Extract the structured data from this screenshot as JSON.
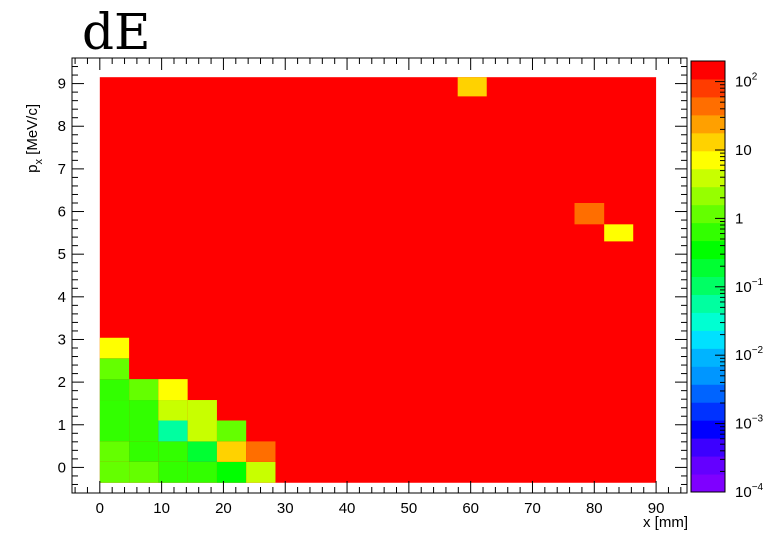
{
  "chart_data": {
    "type": "heatmap",
    "title": "dE",
    "xlabel": "x [mm]",
    "ylabel_main": "p",
    "ylabel_sub": "x",
    "ylabel_unit": " [MeV/c]",
    "x_bin_edges": [
      0,
      4.74,
      9.47,
      14.21,
      18.95,
      23.68,
      28.42,
      90
    ],
    "y_bin_edges": [
      -0.36,
      0.13,
      0.61,
      1.1,
      1.58,
      2.07,
      2.56,
      3.04,
      3.29,
      4.0,
      5.0,
      5.3,
      5.7,
      6.2,
      8.7,
      9.15
    ],
    "xlim": [
      -4.5,
      95
    ],
    "ylim": [
      -0.6,
      9.6
    ],
    "x_ticks": [
      "0",
      "10",
      "20",
      "30",
      "40",
      "50",
      "60",
      "70",
      "80",
      "90"
    ],
    "y_ticks": [
      "0",
      "1",
      "2",
      "3",
      "4",
      "5",
      "6",
      "7",
      "8",
      "9"
    ],
    "z_scale": "log",
    "zlim": [
      0.0001,
      200
    ],
    "z_tick_labels": [
      {
        "base": "10",
        "exp": "2",
        "value": 100
      },
      {
        "base": "10",
        "exp": "",
        "value": 10
      },
      {
        "base": "1",
        "exp": "",
        "value": 1
      },
      {
        "base": "10",
        "exp": "−1",
        "value": 0.1
      },
      {
        "base": "10",
        "exp": "−2",
        "value": 0.01
      },
      {
        "base": "10",
        "exp": "−3",
        "value": 0.001
      },
      {
        "base": "10",
        "exp": "−4",
        "value": 0.0001
      }
    ],
    "cells": [
      {
        "x": [
          0,
          90
        ],
        "y": [
          -0.36,
          9.15
        ],
        "z": 150
      },
      {
        "x": [
          0,
          4.74
        ],
        "y": [
          -0.36,
          0.13
        ],
        "z": 1.5
      },
      {
        "x": [
          4.74,
          9.47
        ],
        "y": [
          -0.36,
          0.13
        ],
        "z": 1.5
      },
      {
        "x": [
          9.47,
          14.21
        ],
        "y": [
          -0.36,
          0.13
        ],
        "z": 0.5
      },
      {
        "x": [
          14.21,
          18.95
        ],
        "y": [
          -0.36,
          0.13
        ],
        "z": 0.5
      },
      {
        "x": [
          18.95,
          23.68
        ],
        "y": [
          -0.36,
          0.13
        ],
        "z": 0.3
      },
      {
        "x": [
          23.68,
          28.42
        ],
        "y": [
          -0.36,
          0.13
        ],
        "z": 5
      },
      {
        "x": [
          0,
          4.74
        ],
        "y": [
          0.13,
          0.61
        ],
        "z": 1.5
      },
      {
        "x": [
          4.74,
          9.47
        ],
        "y": [
          0.13,
          0.61
        ],
        "z": 0.5
      },
      {
        "x": [
          9.47,
          14.21
        ],
        "y": [
          0.13,
          0.61
        ],
        "z": 0.5
      },
      {
        "x": [
          14.21,
          18.95
        ],
        "y": [
          0.13,
          0.61
        ],
        "z": 0.15
      },
      {
        "x": [
          18.95,
          23.68
        ],
        "y": [
          0.13,
          0.61
        ],
        "z": 15
      },
      {
        "x": [
          23.68,
          28.42
        ],
        "y": [
          0.13,
          0.61
        ],
        "z": 35
      },
      {
        "x": [
          0,
          4.74
        ],
        "y": [
          0.61,
          1.1
        ],
        "z": 0.5
      },
      {
        "x": [
          4.74,
          9.47
        ],
        "y": [
          0.61,
          1.1
        ],
        "z": 0.5
      },
      {
        "x": [
          9.47,
          14.21
        ],
        "y": [
          0.61,
          1.1
        ],
        "z": 0.07
      },
      {
        "x": [
          14.21,
          18.95
        ],
        "y": [
          0.61,
          1.1
        ],
        "z": 3
      },
      {
        "x": [
          18.95,
          23.68
        ],
        "y": [
          0.61,
          1.1
        ],
        "z": 1.5
      },
      {
        "x": [
          0,
          4.74
        ],
        "y": [
          1.1,
          1.58
        ],
        "z": 0.5
      },
      {
        "x": [
          4.74,
          9.47
        ],
        "y": [
          1.1,
          1.58
        ],
        "z": 0.5
      },
      {
        "x": [
          9.47,
          14.21
        ],
        "y": [
          1.1,
          1.58
        ],
        "z": 3
      },
      {
        "x": [
          14.21,
          18.95
        ],
        "y": [
          1.1,
          1.58
        ],
        "z": 3
      },
      {
        "x": [
          0,
          4.74
        ],
        "y": [
          1.58,
          2.07
        ],
        "z": 0.5
      },
      {
        "x": [
          4.74,
          9.47
        ],
        "y": [
          1.58,
          2.07
        ],
        "z": 1.5
      },
      {
        "x": [
          9.47,
          14.21
        ],
        "y": [
          1.58,
          2.07
        ],
        "z": 6
      },
      {
        "x": [
          0,
          4.74
        ],
        "y": [
          2.07,
          2.56
        ],
        "z": 1.5
      },
      {
        "x": [
          0,
          4.74
        ],
        "y": [
          2.56,
          3.04
        ],
        "z": 6
      },
      {
        "x": [
          57.9,
          62.6
        ],
        "y": [
          8.7,
          9.15
        ],
        "z": 15
      },
      {
        "x": [
          76.8,
          81.6
        ],
        "y": [
          5.7,
          6.2
        ],
        "z": 35
      },
      {
        "x": [
          81.6,
          86.3
        ],
        "y": [
          5.3,
          5.7
        ],
        "z": 6
      }
    ]
  }
}
